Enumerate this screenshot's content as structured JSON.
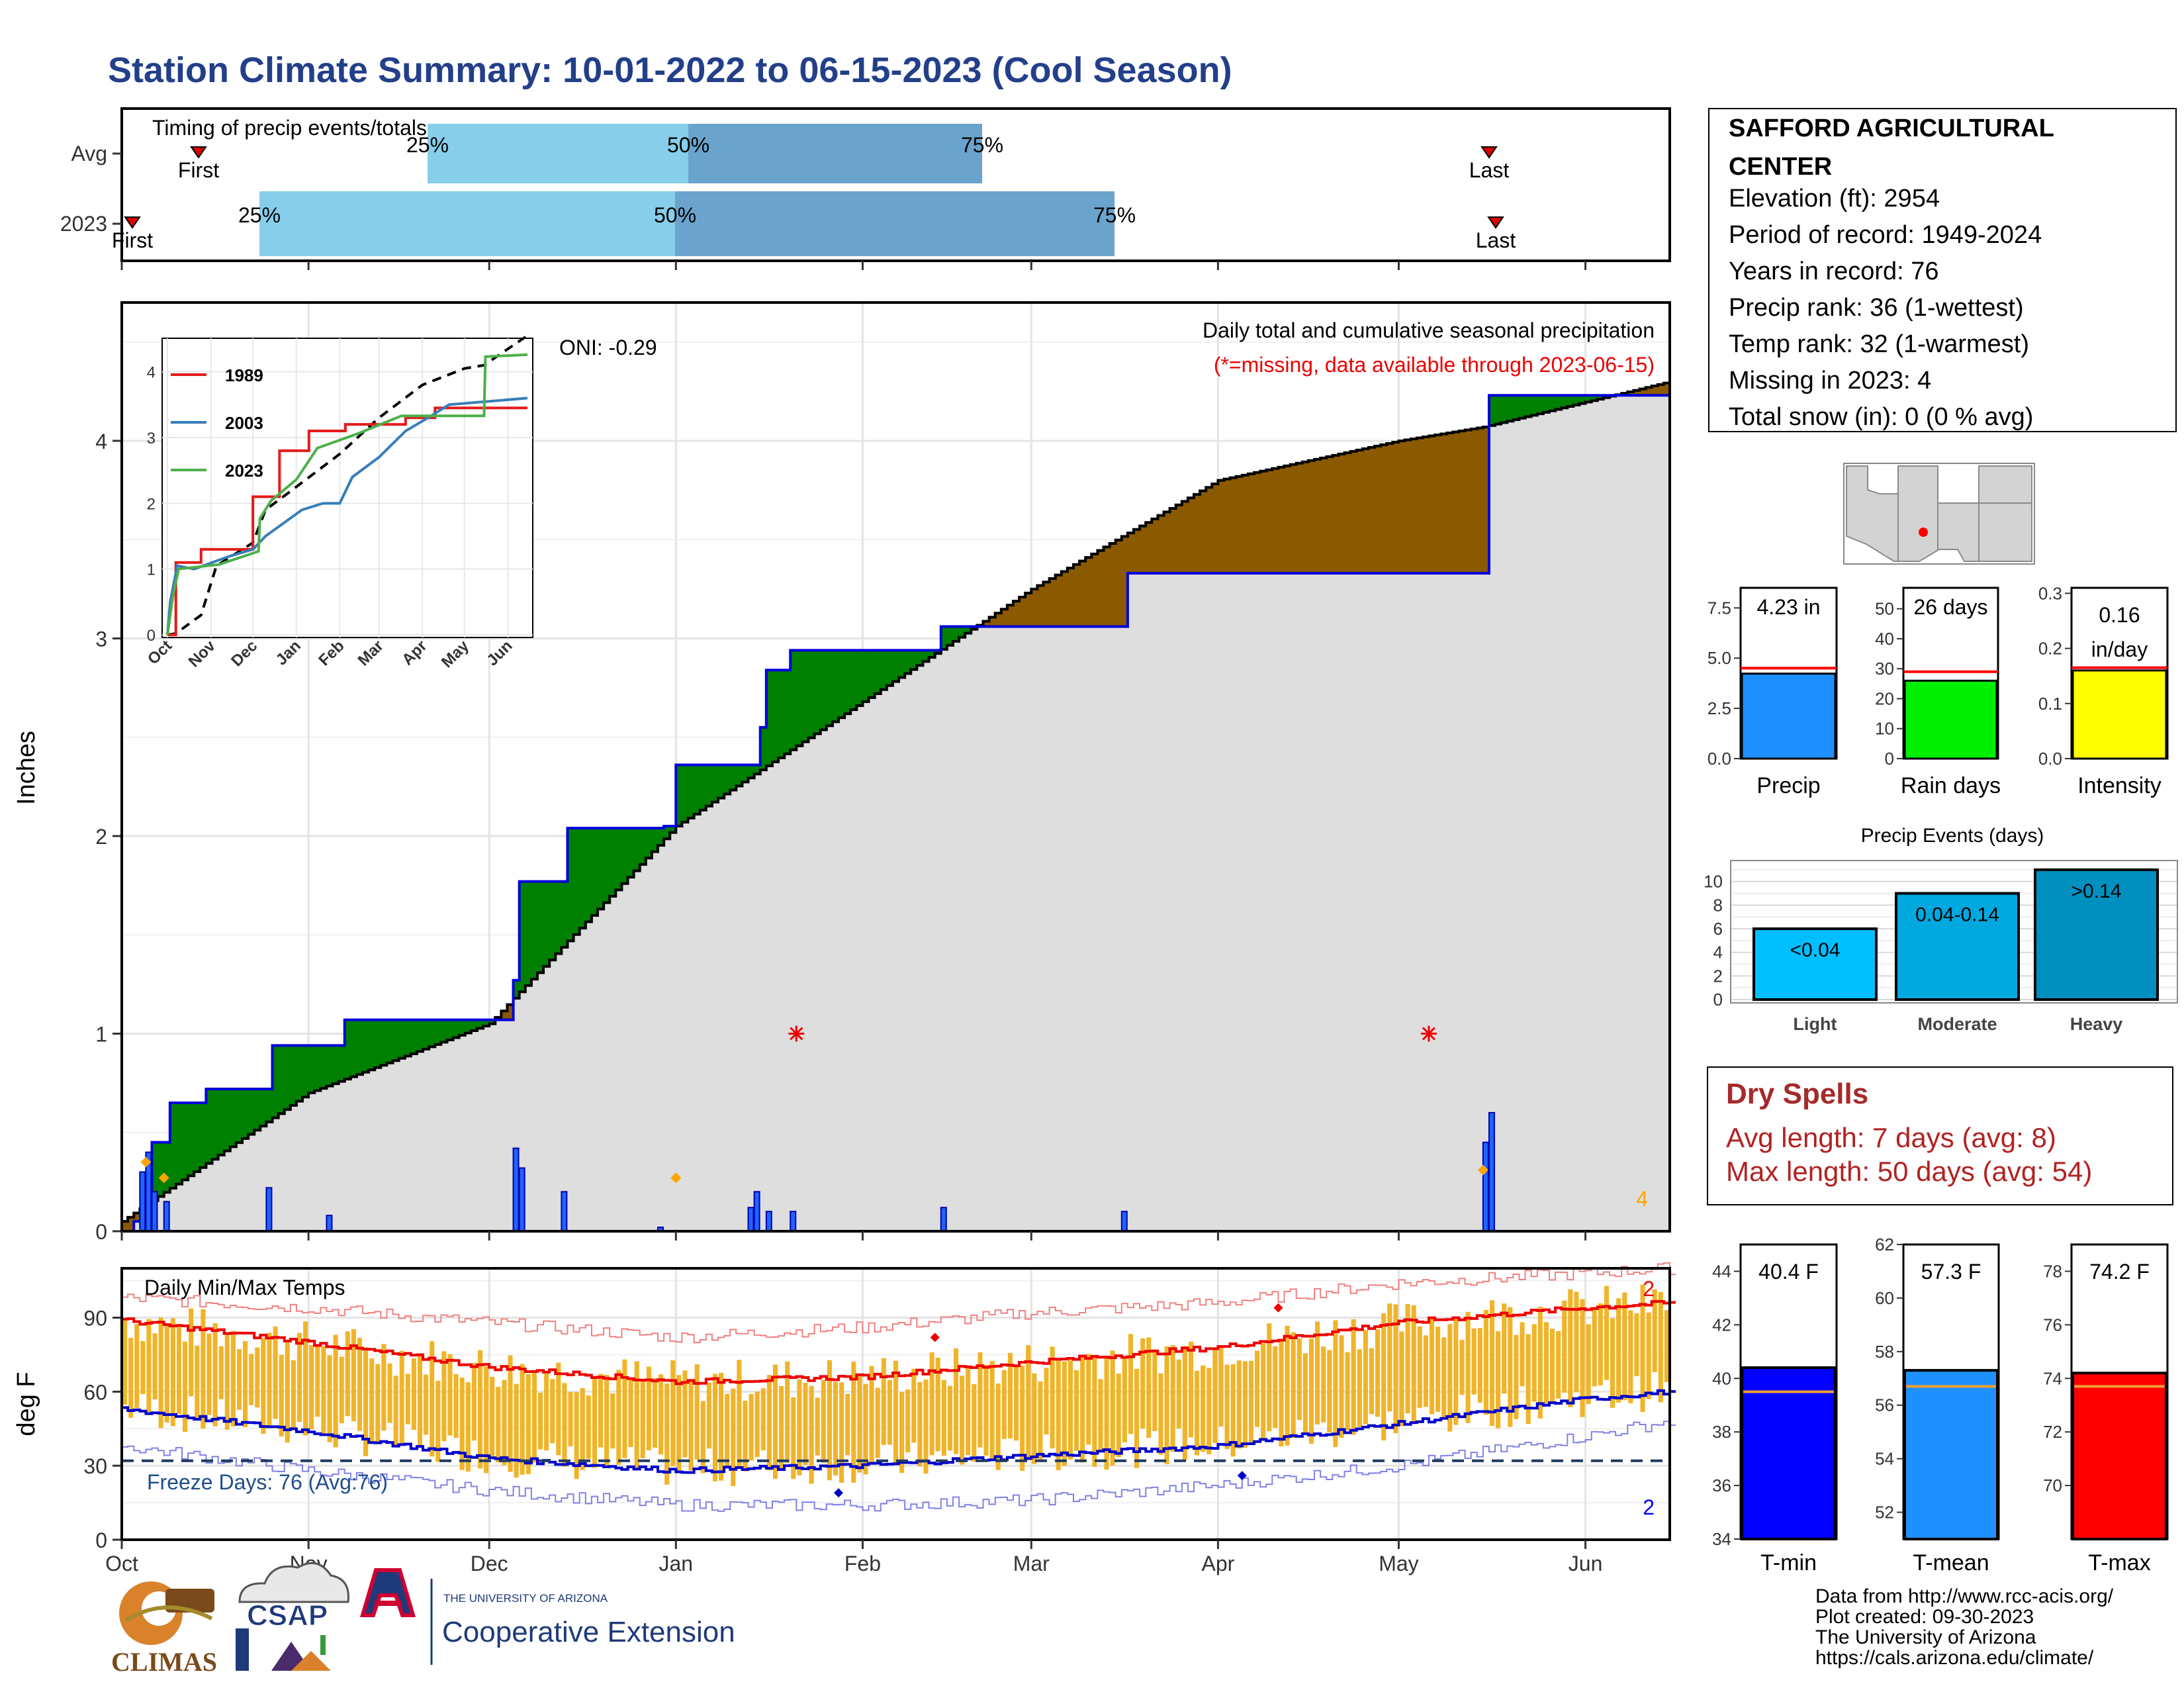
{
  "title": "Station Climate Summary: 10-01-2022 to 06-15-2023 (Cool Season)",
  "months": [
    "Oct",
    "Nov",
    "Dec",
    "Jan",
    "Feb",
    "Mar",
    "Apr",
    "May",
    "Jun"
  ],
  "timing": {
    "title": "Timing of precip events/totals",
    "rows": [
      {
        "label": "Avg",
        "first": "First",
        "p25": "25%",
        "p50": "50%",
        "p75": "75%",
        "last": "Last"
      },
      {
        "label": "2023",
        "first": "First",
        "p25": "25%",
        "p50": "50%",
        "p75": "75%",
        "last": "Last"
      }
    ]
  },
  "precip": {
    "ylabel": "Inches",
    "oni": "ONI: -0.29",
    "note1": "Daily total and cumulative seasonal precipitation",
    "note2": "(*=missing, data available through 2023-06-15)",
    "missing_count": "4",
    "inset_months": [
      "Oct",
      "Nov",
      "Dec",
      "Jan",
      "Feb",
      "Mar",
      "Apr",
      "May",
      "Jun"
    ],
    "inset_legend": [
      "1989",
      "2003",
      "2023"
    ]
  },
  "temps": {
    "ylabel": "deg F",
    "title": "Daily Min/Max Temps",
    "freeze": "Freeze Days: 76 (Avg:76)",
    "high_count": "2",
    "low_count": "2"
  },
  "station": {
    "name1": "SAFFORD AGRICULTURAL",
    "name2": "CENTER",
    "elevation": "Elevation (ft): 2954",
    "period": "Period of record: 1949-2024",
    "years": "Years in record: 76",
    "precip_rank": "Precip rank: 36 (1-wettest)",
    "temp_rank": "Temp rank: 32 (1-warmest)",
    "missing": "Missing in 2023: 4",
    "snow": "Total snow (in): 0 (0 % avg)"
  },
  "summary_bars": [
    {
      "label": "Precip",
      "value_text": "4.23 in",
      "value": 4.23,
      "avg": 4.5,
      "ticks": [
        "0.0",
        "2.5",
        "5.0",
        "7.5"
      ],
      "color": "#1f90ff"
    },
    {
      "label": "Rain days",
      "value_text": "26 days",
      "value": 26,
      "avg": 29,
      "ticks": [
        "0",
        "10",
        "20",
        "30",
        "40",
        "50"
      ],
      "color": "#00ee00"
    },
    {
      "label": "Intensity",
      "value_text": "0.16 in/day",
      "value": 0.16,
      "avg": 0.165,
      "ticks": [
        "0.0",
        "0.1",
        "0.2",
        "0.3"
      ],
      "color": "#ffff00"
    }
  ],
  "events": {
    "title": "Precip Events (days)",
    "ticks": [
      "0",
      "2",
      "4",
      "6",
      "8",
      "10"
    ],
    "categories": [
      "Light",
      "Moderate",
      "Heavy"
    ],
    "labels": [
      "<0.04",
      "0.04-0.14",
      ">0.14"
    ],
    "values": [
      6,
      9,
      11
    ],
    "colors": [
      "#00bfff",
      "#00a8e0",
      "#0090c0"
    ]
  },
  "dry": {
    "title": "Dry Spells",
    "avg": "Avg length: 7 days (avg: 8)",
    "max": "Max length: 50 days (avg: 54)"
  },
  "temp_bars": [
    {
      "label": "T-min",
      "value_text": "40.4 F",
      "value": 40.4,
      "avg": 39.5,
      "ticks": [
        "34",
        "36",
        "38",
        "40",
        "42",
        "44"
      ],
      "color": "#0000ff"
    },
    {
      "label": "T-mean",
      "value_text": "57.3 F",
      "value": 57.3,
      "avg": 56.7,
      "ticks": [
        "52",
        "54",
        "56",
        "58",
        "60",
        "62"
      ],
      "color": "#1f90ff"
    },
    {
      "label": "T-max",
      "value_text": "74.2 F",
      "value": 74.2,
      "avg": 73.7,
      "ticks": [
        "70",
        "72",
        "74",
        "76",
        "78"
      ],
      "color": "#ff0000"
    }
  ],
  "logos": {
    "climas": "CLIMAS",
    "csap": "CSAP",
    "uofa_small": "THE UNIVERSITY OF ARIZONA",
    "coop": "Cooperative Extension"
  },
  "credits": [
    "Data from http://www.rcc-acis.org/",
    "Plot created: 09-30-2023",
    "The University of Arizona",
    "https://cals.arizona.edu/climate/"
  ],
  "chart_data": [
    {
      "type": "bar",
      "name": "timing",
      "rows": [
        "Avg",
        "2023"
      ]
    },
    {
      "type": "area",
      "name": "cumulative precipitation",
      "ylabel": "Inches",
      "ylim": [
        0,
        4.7
      ],
      "series": [
        {
          "role": "observed",
          "points": [
            [
              "2022-10-01",
              0
            ],
            [
              "2022-10-03",
              0.05
            ],
            [
              "2022-10-06",
              0.45
            ],
            [
              "2022-10-09",
              0.65
            ],
            [
              "2022-10-15",
              0.72
            ],
            [
              "2022-10-26",
              0.94
            ],
            [
              "2022-11-07",
              1.07
            ],
            [
              "2022-12-02",
              1.07
            ],
            [
              "2022-12-05",
              1.27
            ],
            [
              "2022-12-06",
              1.77
            ],
            [
              "2022-12-13",
              1.77
            ],
            [
              "2022-12-14",
              2.04
            ],
            [
              "2022-12-29",
              2.04
            ],
            [
              "2022-12-30",
              2.05
            ],
            [
              "2023-01-01",
              2.36
            ],
            [
              "2023-01-14",
              2.36
            ],
            [
              "2023-01-15",
              2.55
            ],
            [
              "2023-01-16",
              2.84
            ],
            [
              "2023-01-20",
              2.94
            ],
            [
              "2023-02-13",
              2.94
            ],
            [
              "2023-02-14",
              3.06
            ],
            [
              "2023-03-16",
              3.06
            ],
            [
              "2023-03-17",
              3.33
            ],
            [
              "2023-05-15",
              3.33
            ],
            [
              "2023-05-16",
              4.23
            ],
            [
              "2023-06-15",
              4.26
            ]
          ]
        },
        {
          "role": "average",
          "points": [
            [
              "2022-10-01",
              0.05
            ],
            [
              "2022-11-01",
              0.7
            ],
            [
              "2022-12-01",
              1.05
            ],
            [
              "2023-01-01",
              2.05
            ],
            [
              "2023-02-01",
              2.68
            ],
            [
              "2023-03-01",
              3.25
            ],
            [
              "2023-04-01",
              3.8
            ],
            [
              "2023-05-01",
              4.0
            ],
            [
              "2023-05-15",
              4.07
            ],
            [
              "2023-06-15",
              4.3
            ]
          ]
        }
      ],
      "daily_bars": [
        [
          "2022-10-04",
          0.3
        ],
        [
          "2022-10-05",
          0.4
        ],
        [
          "2022-10-06",
          0.2
        ],
        [
          "2022-10-08",
          0.15
        ],
        [
          "2022-10-25",
          0.22
        ],
        [
          "2022-11-04",
          0.08
        ],
        [
          "2022-12-05",
          0.42
        ],
        [
          "2022-12-06",
          0.32
        ],
        [
          "2022-12-13",
          0.2
        ],
        [
          "2022-12-29",
          0.02
        ],
        [
          "2023-01-13",
          0.12
        ],
        [
          "2023-01-14",
          0.2
        ],
        [
          "2023-01-16",
          0.1
        ],
        [
          "2023-01-20",
          0.1
        ],
        [
          "2023-02-14",
          0.12
        ],
        [
          "2023-03-16",
          0.1
        ],
        [
          "2023-05-15",
          0.45
        ],
        [
          "2023-05-16",
          0.6
        ]
      ]
    },
    {
      "type": "line",
      "name": "daily temperatures",
      "ylabel": "deg F",
      "ylim": [
        0,
        110
      ],
      "x": [
        "2022-10-01",
        "2022-11-01",
        "2022-12-01",
        "2023-01-01",
        "2023-02-01",
        "2023-03-01",
        "2023-04-01",
        "2023-05-01",
        "2023-06-01",
        "2023-06-15"
      ],
      "series": [
        {
          "role": "normal max",
          "values": [
            89,
            80,
            70,
            64,
            66,
            72,
            78,
            88,
            94,
            96
          ]
        },
        {
          "role": "normal min",
          "values": [
            53,
            44,
            33,
            28,
            30,
            34,
            38,
            47,
            57,
            60
          ]
        },
        {
          "role": "record high",
          "values": [
            98,
            94,
            88,
            82,
            86,
            92,
            96,
            104,
            108,
            110
          ]
        },
        {
          "role": "record low",
          "values": [
            38,
            28,
            20,
            14,
            14,
            16,
            22,
            30,
            42,
            48
          ]
        }
      ],
      "freeze_line": 32
    }
  ]
}
